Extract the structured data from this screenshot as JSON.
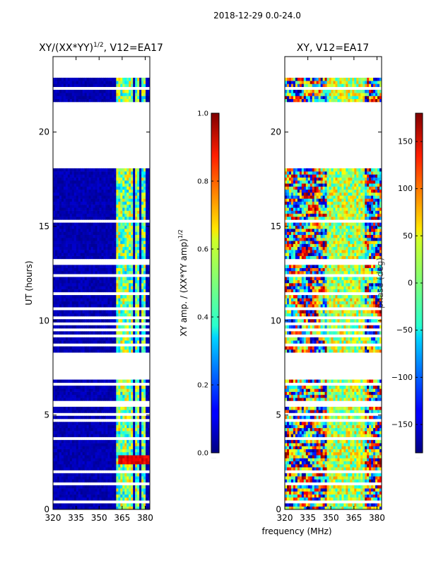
{
  "page_title": "2018-12-29 0.0-24.0",
  "chart_data": [
    {
      "type": "heatmap",
      "title_main": "XY/(XX*YY)",
      "title_exp": "1/2",
      "title_tail": ", V12=EA17",
      "xlabel": "",
      "ylabel": "UT (hours)",
      "xlim": [
        320,
        383
      ],
      "ylim": [
        0,
        24
      ],
      "xticks": [
        "320",
        "335",
        "350",
        "365",
        "380"
      ],
      "xtick_values": [
        320,
        335,
        350,
        365,
        380
      ],
      "yticks": [
        "0",
        "5",
        "10",
        "15",
        "20"
      ],
      "ytick_values": [
        0,
        5,
        10,
        15,
        20
      ],
      "colorscale": "jet",
      "value_range": [
        0.0,
        1.0
      ],
      "colorbar": {
        "label_main": "XY amp. / (XX*YY amp)",
        "label_exp": "1/2",
        "ticks": [
          "0.0",
          "0.2",
          "0.4",
          "0.6",
          "0.8",
          "1.0"
        ],
        "tick_values": [
          0.0,
          0.2,
          0.4,
          0.6,
          0.8,
          1.0
        ]
      },
      "data_hour_ranges": [
        [
          0,
          1.3
        ],
        [
          1.4,
          4.9
        ],
        [
          5.2,
          6.9
        ],
        [
          8.3,
          13.1
        ],
        [
          13.3,
          18.1
        ],
        [
          21.6,
          22.9
        ]
      ],
      "bright_channels_mhz": [
        362,
        365,
        368,
        371,
        375,
        379
      ]
    },
    {
      "type": "heatmap",
      "title_main": "XY, V12=EA17",
      "xlabel": "frequency (MHz)",
      "ylabel": "",
      "xlim": [
        320,
        383
      ],
      "ylim": [
        0,
        24
      ],
      "xticks": [
        "320",
        "335",
        "350",
        "365",
        "380"
      ],
      "xtick_values": [
        320,
        335,
        350,
        365,
        380
      ],
      "yticks": [
        "0",
        "5",
        "10",
        "15",
        "20"
      ],
      "ytick_values": [
        0,
        5,
        10,
        15,
        20
      ],
      "colorscale": "jet",
      "value_range": [
        -180,
        180
      ],
      "colorbar": {
        "label_main": "phase (deg)",
        "ticks": [
          "−150",
          "−100",
          "−50",
          "0",
          "50",
          "100",
          "150"
        ],
        "tick_values": [
          -150,
          -100,
          -50,
          0,
          50,
          100,
          150
        ]
      },
      "data_hour_ranges": [
        [
          0,
          1.3
        ],
        [
          1.4,
          4.9
        ],
        [
          5.2,
          6.9
        ],
        [
          8.3,
          13.1
        ],
        [
          13.3,
          18.1
        ],
        [
          21.6,
          22.9
        ]
      ]
    }
  ]
}
